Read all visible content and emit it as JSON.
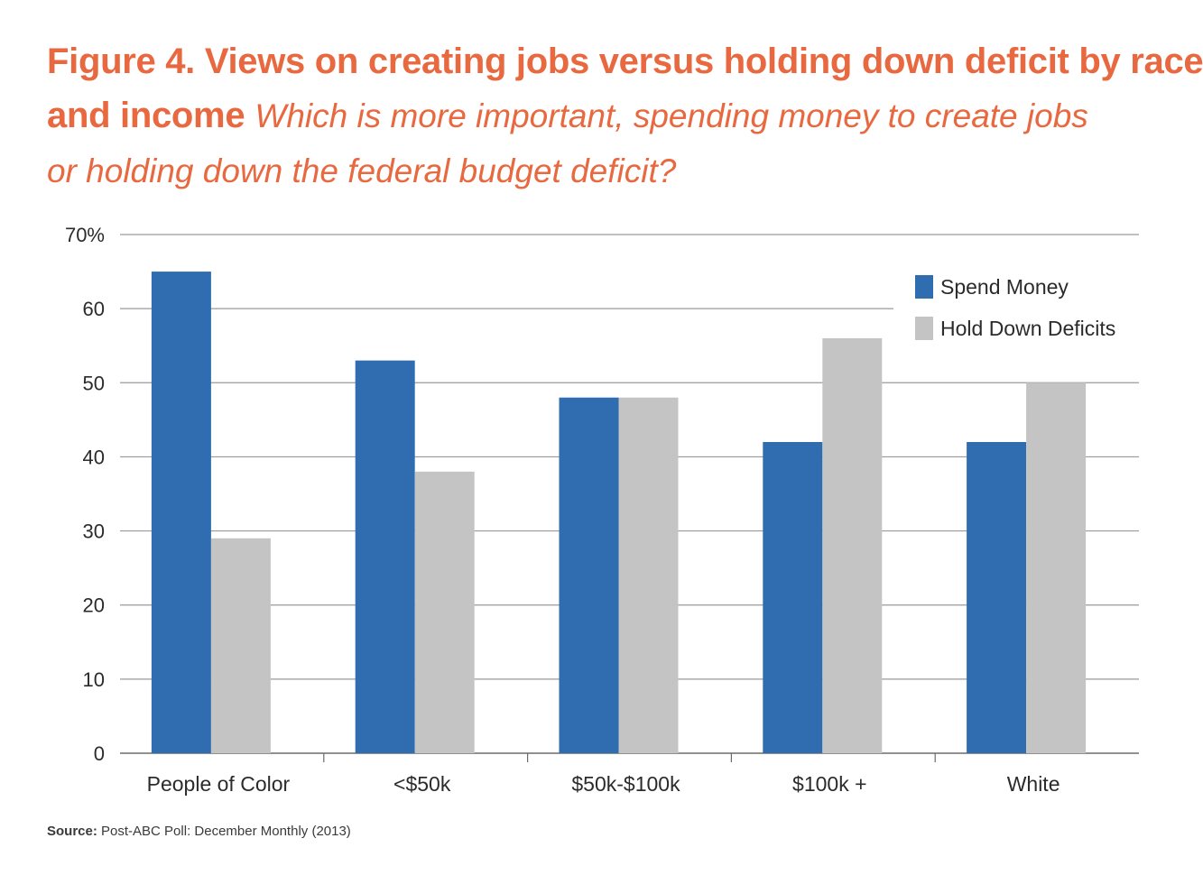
{
  "title": {
    "line1": "Figure 4. Views on creating jobs versus holding down deficit by race",
    "line2_bold": "and income",
    "line2_italic": "Which is more important, spending money to create jobs",
    "line3_italic": "or holding down the federal budget deficit?"
  },
  "source": {
    "label": "Source:",
    "text": "Post-ABC Poll: December Monthly (2013)"
  },
  "colors": {
    "title": "#e8683f",
    "spend": "#2f6db0",
    "hold": "#c4c4c4",
    "grid": "#9a9a9a",
    "axis": "#6b6b6b"
  },
  "chart_data": {
    "type": "bar",
    "categories": [
      "People of Color",
      "<$50k",
      "$50k-$100k",
      "$100k +",
      "White"
    ],
    "series": [
      {
        "name": "Spend Money",
        "values": [
          65,
          53,
          48,
          42,
          42
        ]
      },
      {
        "name": "Hold Down Deficits",
        "values": [
          29,
          38,
          48,
          56,
          50
        ]
      }
    ],
    "ylim": [
      0,
      70
    ],
    "yticks": [
      "0",
      "10",
      "20",
      "30",
      "40",
      "50",
      "60",
      "70%"
    ],
    "grid": true,
    "legend": "top-right"
  }
}
